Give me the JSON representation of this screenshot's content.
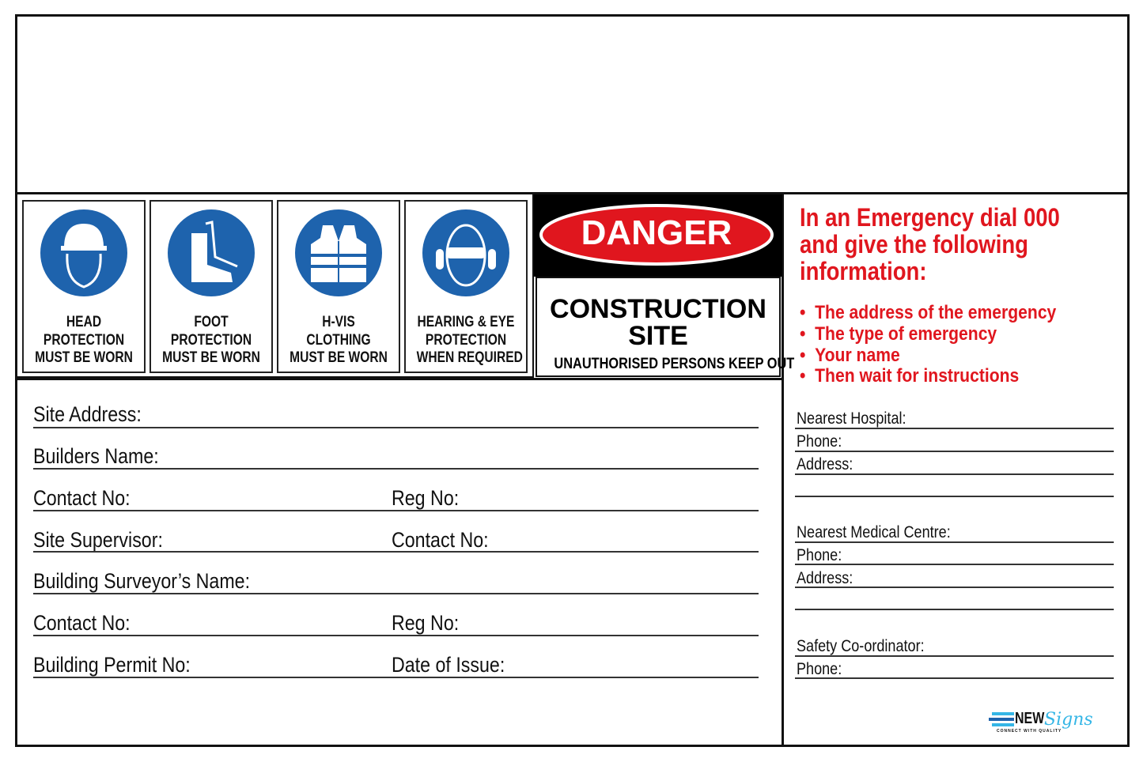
{
  "ppe": [
    {
      "icon": "hard-hat-icon",
      "lines": [
        "HEAD",
        "PROTECTION",
        "MUST BE WORN"
      ]
    },
    {
      "icon": "safety-boot-icon",
      "lines": [
        "FOOT",
        "PROTECTION",
        "MUST BE WORN"
      ]
    },
    {
      "icon": "hi-vis-vest-icon",
      "lines": [
        "H-VIS",
        "CLOTHING",
        "MUST BE WORN"
      ]
    },
    {
      "icon": "ear-eye-protection-icon",
      "lines": [
        "HEARING & EYE",
        "PROTECTION",
        "WHEN REQUIRED"
      ]
    }
  ],
  "danger": {
    "label": "DANGER",
    "title1": "CONSTRUCTION",
    "title2": "SITE",
    "subtitle": "UNAUTHORISED PERSONS KEEP OUT"
  },
  "fields": {
    "site_address": "Site Address:",
    "builders_name": "Builders Name:",
    "contact_no_1": "Contact No:",
    "reg_no_1": "Reg No:",
    "site_supervisor": "Site Supervisor:",
    "contact_no_2": "Contact No:",
    "surveyor": "Building Surveyor’s Name:",
    "contact_no_3": "Contact No:",
    "reg_no_2": "Reg No:",
    "permit": "Building Permit No:",
    "date_issue": "Date of Issue:"
  },
  "emergency": {
    "line1": "In an Emergency dial 000",
    "line2": "and give the following",
    "line3": "information:",
    "bullets": [
      "The address of the emergency",
      "The type of emergency",
      "Your name",
      "Then wait for instructions"
    ]
  },
  "contacts": {
    "hospital": "Nearest Hospital:",
    "phone1": "Phone:",
    "address1": "Address:",
    "medical": "Nearest Medical Centre:",
    "phone2": "Phone:",
    "address2": "Address:",
    "safety": "Safety Co-ordinator:",
    "phone3": "Phone:"
  },
  "logo": {
    "brand": "NEW",
    "script": "Signs",
    "tagline": "CONNECT WITH QUALITY"
  },
  "colors": {
    "blue": "#1e63ad",
    "red": "#e0161e",
    "logo_blue": "#35b6e6"
  }
}
